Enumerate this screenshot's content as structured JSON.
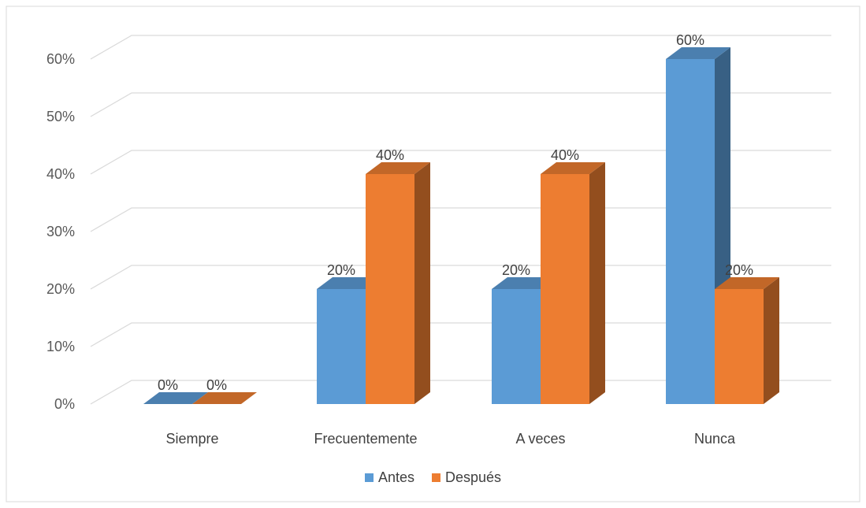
{
  "chart_data": {
    "type": "bar",
    "categories": [
      "Siempre",
      "Frecuentemente",
      "A veces",
      "Nunca"
    ],
    "series": [
      {
        "name": "Antes",
        "values": [
          0,
          20,
          20,
          60
        ],
        "labels": [
          "0%",
          "20%",
          "20%",
          "60%"
        ],
        "color": "#5B9BD5"
      },
      {
        "name": "Después",
        "values": [
          0,
          40,
          40,
          20
        ],
        "labels": [
          "0%",
          "40%",
          "40%",
          "20%"
        ],
        "color": "#ED7D31"
      }
    ],
    "y_ticks": [
      "0%",
      "10%",
      "20%",
      "30%",
      "40%",
      "50%",
      "60%"
    ],
    "ylim": [
      0,
      60
    ],
    "grid": true,
    "legend": "bottom",
    "style": "3d-clustered-column"
  }
}
